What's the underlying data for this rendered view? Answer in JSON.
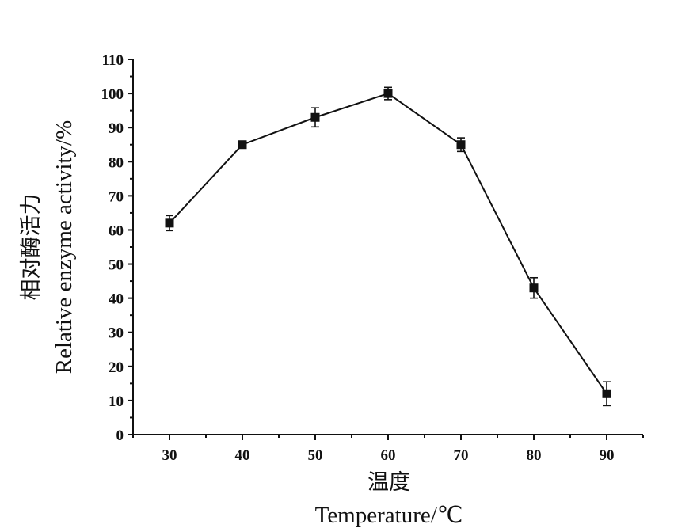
{
  "chart_data": {
    "type": "line",
    "xlabel_cn": "温度",
    "xlabel_en": "Temperature/℃",
    "ylabel_cn": "相对酶活力",
    "ylabel_en": "Relative enzyme activity/%",
    "xlim": [
      25,
      95
    ],
    "ylim": [
      0,
      110
    ],
    "x_ticks": [
      30,
      40,
      50,
      60,
      70,
      80,
      90
    ],
    "y_ticks": [
      0,
      10,
      20,
      30,
      40,
      50,
      60,
      70,
      80,
      90,
      100,
      110
    ],
    "series": [
      {
        "x": [
          30,
          40,
          50,
          60,
          70,
          80,
          90
        ],
        "y": [
          62,
          85,
          93,
          100,
          85,
          43,
          12
        ],
        "error": [
          2.2,
          1.0,
          2.8,
          1.8,
          2.0,
          3.0,
          3.5
        ],
        "marker": "square",
        "color": "#111111"
      }
    ],
    "grid": false
  }
}
